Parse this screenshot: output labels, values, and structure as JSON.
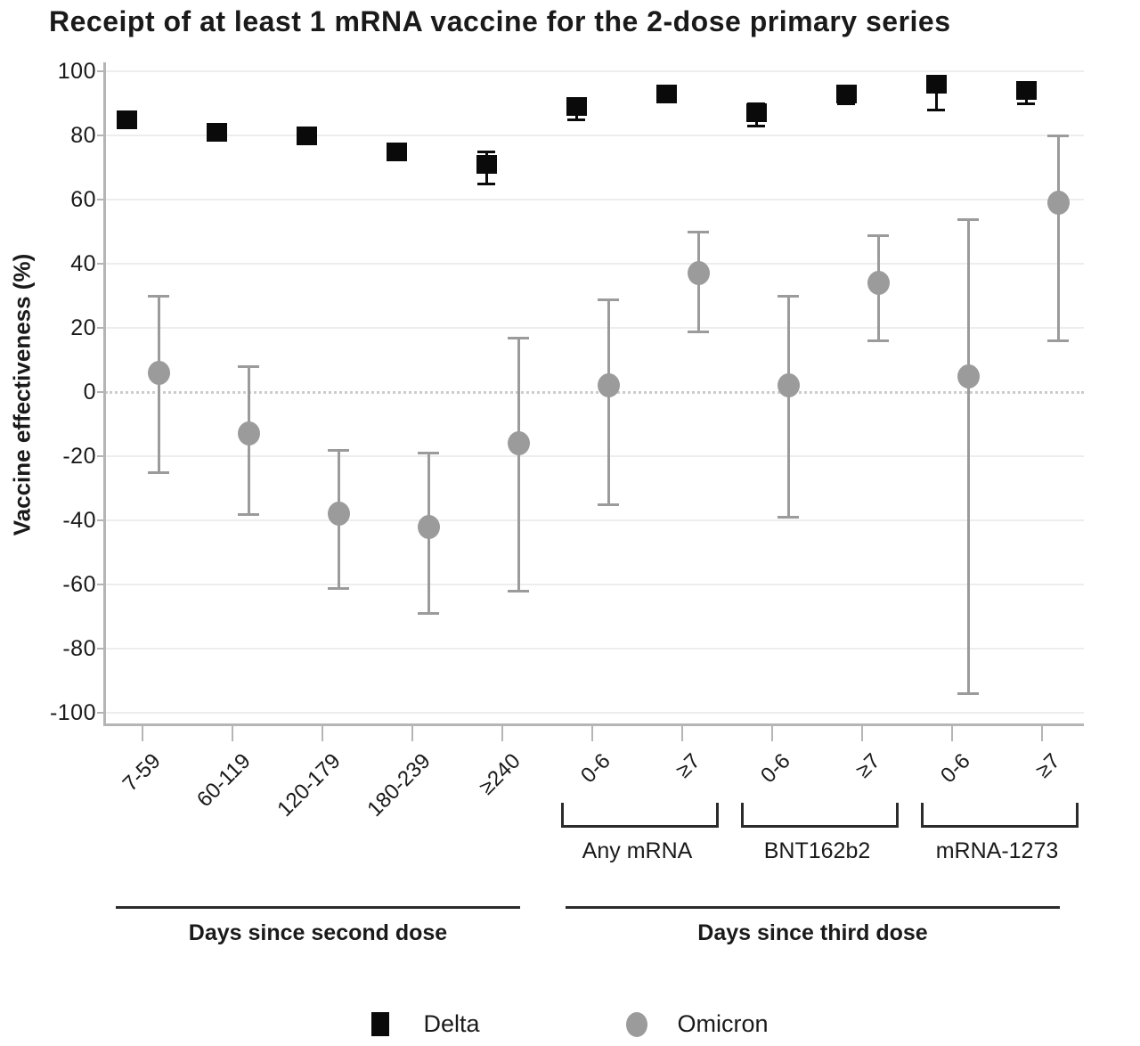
{
  "chart_data": {
    "type": "scatter",
    "title": "Receipt of at least 1 mRNA vaccine for the 2-dose primary series",
    "ylabel": "Vaccine effectiveness (%)",
    "ylim": [
      -100,
      100
    ],
    "yticks": [
      100,
      80,
      60,
      40,
      20,
      0,
      -20,
      -40,
      -60,
      -80,
      -100
    ],
    "grid": true,
    "zero_line": "dotted",
    "categories": [
      "7-59",
      "60-119",
      "120-179",
      "180-239",
      "≥240",
      "0-6",
      "≥7",
      "0-6",
      "≥7",
      "0-6",
      "≥7"
    ],
    "series": [
      {
        "name": "Delta",
        "marker": "square",
        "color": "#0a0a0a",
        "values": [
          85,
          81,
          80,
          75,
          71,
          89,
          93,
          87,
          93,
          96,
          94
        ],
        "ci_low": [
          null,
          null,
          null,
          null,
          65,
          85,
          91,
          83,
          90,
          88,
          90
        ],
        "ci_high": [
          null,
          null,
          null,
          null,
          75,
          91,
          95,
          90,
          94,
          98,
          96
        ]
      },
      {
        "name": "Omicron",
        "marker": "circle",
        "color": "#9b9b9b",
        "values": [
          6,
          -13,
          -38,
          -42,
          -16,
          2,
          37,
          2,
          34,
          5,
          59
        ],
        "ci_low": [
          -25,
          -38,
          -61,
          -69,
          -62,
          -35,
          19,
          -39,
          16,
          -94,
          16
        ],
        "ci_high": [
          30,
          8,
          -18,
          -19,
          17,
          29,
          50,
          30,
          49,
          54,
          80
        ]
      }
    ],
    "subgroups": [
      {
        "label": "Any mRNA",
        "from": 5,
        "to": 6
      },
      {
        "label": "BNT162b2",
        "from": 7,
        "to": 8
      },
      {
        "label": "mRNA-1273",
        "from": 9,
        "to": 10
      }
    ],
    "axis_groups": [
      {
        "label": "Days since second dose",
        "from": 0,
        "to": 4
      },
      {
        "label": "Days since third dose",
        "from": 5,
        "to": 10
      }
    ],
    "legend": {
      "position": "bottom",
      "entries": [
        "Delta",
        "Omicron"
      ]
    }
  },
  "colors": {
    "delta": "#0a0a0a",
    "omicron": "#9b9b9b",
    "grid": "#ededed",
    "axis": "#b5b5b5",
    "zero_line": "#cccccc",
    "text": "#1a1a1a"
  }
}
